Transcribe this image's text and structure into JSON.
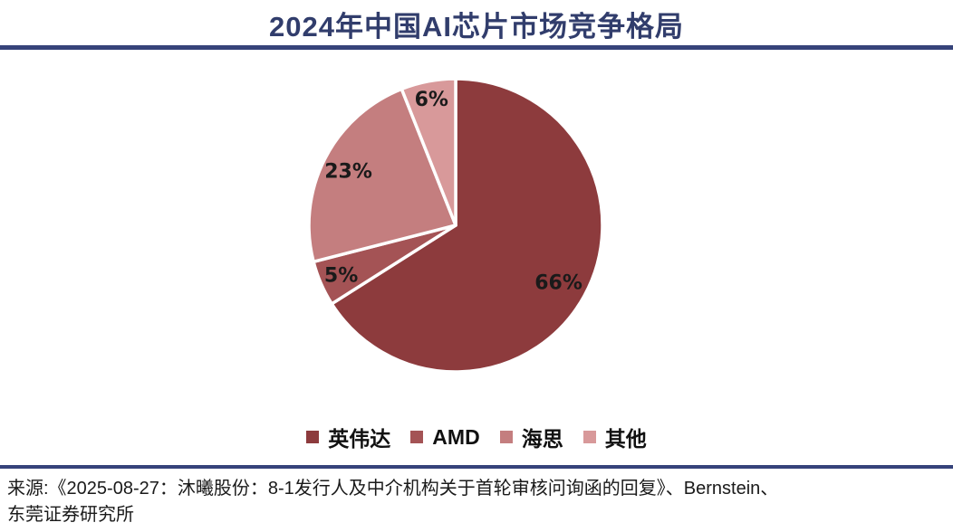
{
  "header": {
    "title": "2024年中国AI芯片市场竞争格局"
  },
  "chart_data": {
    "type": "pie",
    "title": "2024年中国AI芯片市场竞争格局",
    "categories": [
      "英伟达",
      "AMD",
      "海思",
      "其他"
    ],
    "values": [
      66,
      5,
      23,
      6
    ],
    "unit": "%",
    "start_angle_deg": 0,
    "direction": "clockwise",
    "legend_position": "bottom",
    "series": [
      {
        "name": "英伟达",
        "value": 66,
        "label": "66%",
        "color": "#8D3B3D",
        "label_r": 0.8
      },
      {
        "name": "AMD",
        "value": 5,
        "label": "5%",
        "color": "#A45355",
        "label_r": 0.85
      },
      {
        "name": "海思",
        "value": 23,
        "label": "23%",
        "color": "#C47E7F",
        "label_r": 0.82
      },
      {
        "name": "其他",
        "value": 6,
        "label": "6%",
        "color": "#D8999A",
        "label_r": 0.88
      }
    ]
  },
  "colors": {
    "accent_navy": "#36437A",
    "title_navy": "#313D6C",
    "slice_border": "#FFFFFF",
    "label_text": "#1A1A1A"
  },
  "footer": {
    "source_line1": "来源:《2025-08-27：沐曦股份：8-1发行人及中介机构关于首轮审核问询函的回复》、Bernstein、",
    "source_line2": "东莞证券研究所"
  }
}
